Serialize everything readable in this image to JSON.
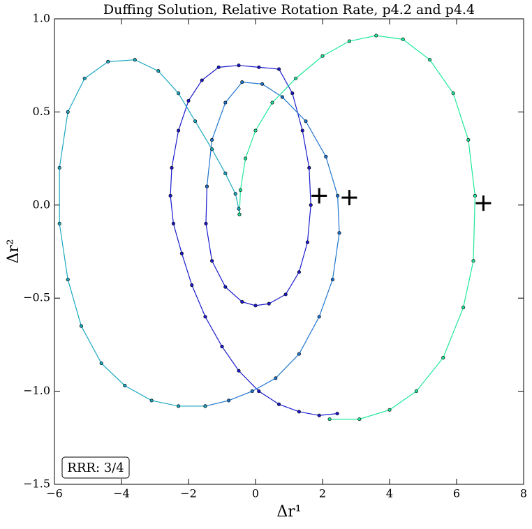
{
  "chart_data": {
    "type": "line",
    "title": "Duffing Solution, Relative Rotation Rate, p4.2 and p4.4",
    "x_label": "Δr¹",
    "y_label": "Δr²",
    "xlim": [
      -6,
      8
    ],
    "ylim": [
      -1.5,
      1.0
    ],
    "xticks": [
      {
        "value": -6,
        "label": "−6"
      },
      {
        "value": -4,
        "label": "−4"
      },
      {
        "value": -2,
        "label": "−2"
      },
      0,
      2,
      4,
      6,
      8
    ],
    "yticks": [
      {
        "value": -1.5,
        "label": "−1.5"
      },
      {
        "value": -1.0,
        "label": "−1.0"
      },
      {
        "value": -0.5,
        "label": "−0.5"
      },
      {
        "value": 0,
        "label": "0.0"
      },
      0.5,
      {
        "value": 1.0,
        "label": "1.0"
      }
    ],
    "series": [
      {
        "color": "#1a1acd",
        "x": [
          2.44,
          1.9,
          1.3,
          0.7,
          0.1,
          -0.5,
          -1.0,
          -1.5,
          -1.9,
          -2.2,
          -2.45,
          -2.54,
          -2.5,
          -2.3,
          -2.0,
          -1.6,
          -1.1,
          -0.5,
          0.1,
          0.7,
          1.1,
          1.4,
          1.6,
          1.65,
          1.55,
          1.3,
          0.9,
          0.4,
          0,
          -0.4,
          -0.9,
          -1.3,
          -1.48,
          -1.45
        ],
        "values": [
          -1.12,
          -1.13,
          -1.11,
          -1.07,
          -1.0,
          -0.89,
          -0.76,
          -0.6,
          -0.43,
          -0.26,
          -0.1,
          0.05,
          0.2,
          0.4,
          0.56,
          0.67,
          0.74,
          0.75,
          0.74,
          0.73,
          0.6,
          0.4,
          0.2,
          0,
          -0.2,
          -0.36,
          -0.48,
          -0.53,
          -0.54,
          -0.52,
          -0.44,
          -0.3,
          -0.1,
          0.1
        ]
      },
      {
        "color": "#1e74cf",
        "x": [
          -1.45,
          -1.3,
          -0.9,
          -0.4,
          0.2,
          0.8,
          1.5,
          2.1,
          2.45,
          2.5,
          2.3,
          1.9,
          1.3,
          0.6,
          -0.1,
          -0.8,
          -1.5
        ],
        "values": [
          0.1,
          0.35,
          0.55,
          0.66,
          0.65,
          0.58,
          0.45,
          0.26,
          0.05,
          -0.15,
          -0.4,
          -0.6,
          -0.8,
          -0.93,
          -1.0,
          -1.05,
          -1.08
        ]
      },
      {
        "color": "#1aa8c0",
        "x": [
          -1.5,
          -2.3,
          -3.1,
          -3.9,
          -4.6,
          -5.2,
          -5.6,
          -5.85,
          -5.85,
          -5.6,
          -5.1,
          -4.4,
          -3.6,
          -2.9,
          -2.3,
          -1.8,
          -1.3,
          -0.9,
          -0.6,
          -0.5,
          -0.48
        ],
        "values": [
          -1.08,
          -1.08,
          -1.05,
          -0.97,
          -0.85,
          -0.65,
          -0.4,
          -0.1,
          0.2,
          0.5,
          0.68,
          0.77,
          0.78,
          0.72,
          0.6,
          0.45,
          0.3,
          0.17,
          0.06,
          -0.02,
          -0.05
        ]
      },
      {
        "color": "#1ee89a",
        "x": [
          -0.48,
          -0.45,
          -0.3,
          0,
          0.5,
          1.2,
          2,
          2.8,
          3.6,
          4.4,
          5.2,
          5.9,
          6.35,
          6.55,
          6.5,
          6.2,
          5.6,
          4.8,
          4.0,
          3.1,
          2.21
        ],
        "values": [
          -0.05,
          0.08,
          0.25,
          0.4,
          0.55,
          0.68,
          0.8,
          0.88,
          0.91,
          0.89,
          0.78,
          0.6,
          0.35,
          0.05,
          -0.3,
          -0.55,
          -0.82,
          -1.0,
          -1.1,
          -1.15,
          -1.15
        ]
      }
    ],
    "crosses": {
      "x": [
        1.9,
        2.8,
        6.8
      ],
      "y": [
        0.05,
        0.04,
        0.01
      ]
    },
    "annotation": "RRR: 3/4"
  }
}
